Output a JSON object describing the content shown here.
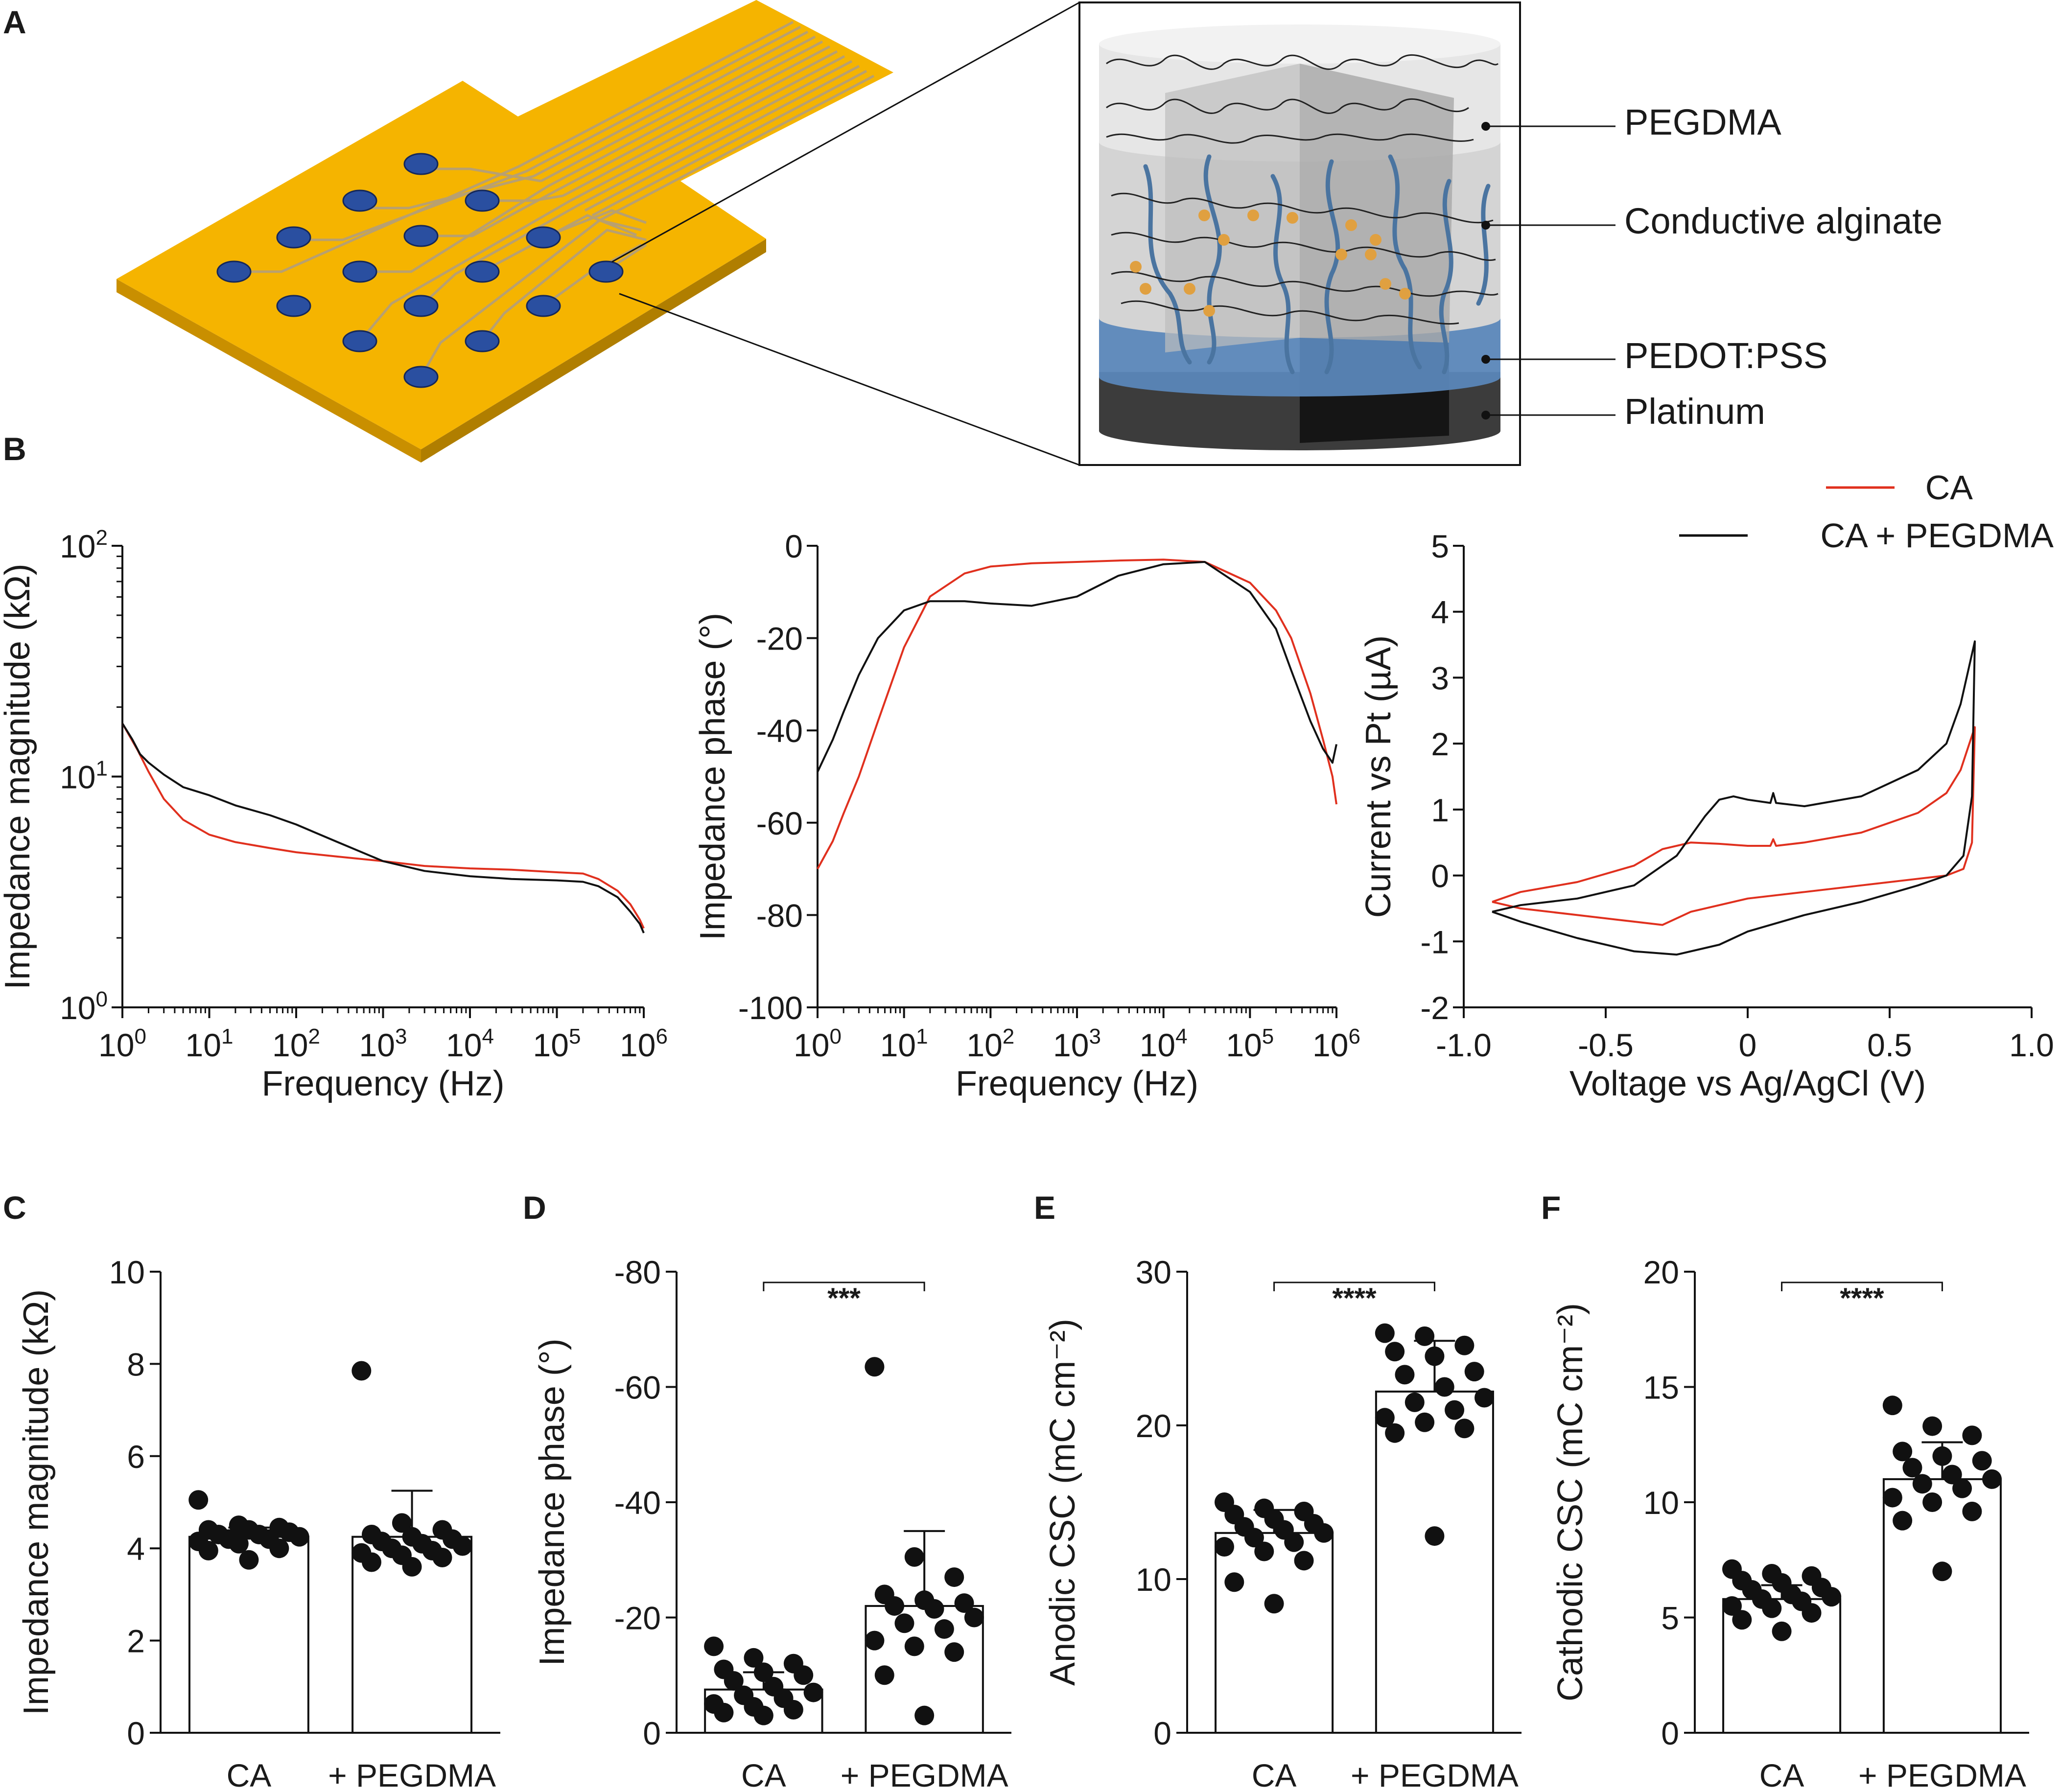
{
  "panel_letters": [
    "A",
    "B",
    "C",
    "D",
    "E",
    "F"
  ],
  "schematic": {
    "layers": [
      "PEGDMA",
      "Conductive alginate",
      "PEDOT:PSS",
      "Platinum"
    ]
  },
  "legend": {
    "entries": [
      "CA",
      "CA + PEGDMA"
    ]
  },
  "colors": {
    "ca": "#e0301e",
    "ca_pegdma": "#111111",
    "pcb": "#f5b400",
    "electrode": "#2a4fa0",
    "trace": "#b8a070"
  },
  "chart_data": [
    {
      "id": "B1",
      "type": "line",
      "xscale": "log",
      "yscale": "log",
      "xlabel": "Frequency (Hz)",
      "ylabel": "Impedance magnitude (kΩ)",
      "xlim": [
        1,
        1000000
      ],
      "ylim": [
        1,
        100
      ],
      "xticks": [
        {
          "base": "10",
          "exp": "0"
        },
        {
          "base": "10",
          "exp": "1"
        },
        {
          "base": "10",
          "exp": "2"
        },
        {
          "base": "10",
          "exp": "3"
        },
        {
          "base": "10",
          "exp": "4"
        },
        {
          "base": "10",
          "exp": "5"
        },
        {
          "base": "10",
          "exp": "6"
        }
      ],
      "yticks": [
        {
          "base": "10",
          "exp": "0"
        },
        {
          "base": "10",
          "exp": "1"
        },
        {
          "base": "10",
          "exp": "2"
        }
      ],
      "series": [
        {
          "name": "CA",
          "x": [
            1,
            1.5,
            2,
            3,
            5,
            10,
            20,
            50,
            100,
            300,
            1000,
            3000,
            10000,
            30000,
            100000,
            200000,
            300000,
            500000,
            700000,
            900000,
            1000000
          ],
          "y": [
            17,
            13,
            10.5,
            8,
            6.5,
            5.6,
            5.2,
            4.9,
            4.7,
            4.5,
            4.3,
            4.1,
            4.0,
            3.95,
            3.85,
            3.8,
            3.6,
            3.2,
            2.8,
            2.4,
            2.2
          ]
        },
        {
          "name": "CA + PEGDMA",
          "x": [
            1,
            1.3,
            1.6,
            2,
            3,
            5,
            10,
            20,
            50,
            100,
            300,
            1000,
            3000,
            10000,
            30000,
            100000,
            200000,
            300000,
            500000,
            700000,
            900000,
            1000000
          ],
          "y": [
            17,
            14.5,
            12.5,
            11.5,
            10.2,
            9.0,
            8.3,
            7.5,
            6.8,
            6.2,
            5.2,
            4.3,
            3.9,
            3.7,
            3.6,
            3.55,
            3.5,
            3.35,
            3.0,
            2.6,
            2.3,
            2.1
          ]
        }
      ]
    },
    {
      "id": "B2",
      "type": "line",
      "xscale": "log",
      "xlabel": "Frequency (Hz)",
      "ylabel": "Impedance phase (°)",
      "xlim": [
        1,
        1000000
      ],
      "ylim": [
        -100,
        0
      ],
      "xticks": [
        {
          "base": "10",
          "exp": "0"
        },
        {
          "base": "10",
          "exp": "1"
        },
        {
          "base": "10",
          "exp": "2"
        },
        {
          "base": "10",
          "exp": "3"
        },
        {
          "base": "10",
          "exp": "4"
        },
        {
          "base": "10",
          "exp": "5"
        },
        {
          "base": "10",
          "exp": "6"
        }
      ],
      "yticks": [
        "0",
        "-20",
        "-40",
        "-60",
        "-80",
        "-100"
      ],
      "series": [
        {
          "name": "CA",
          "x": [
            1,
            1.5,
            2,
            3,
            5,
            10,
            20,
            50,
            100,
            300,
            1000,
            3000,
            10000,
            30000,
            100000,
            200000,
            300000,
            500000,
            700000,
            900000,
            1000000
          ],
          "y": [
            -70,
            -64,
            -58,
            -50,
            -38,
            -22,
            -11,
            -6,
            -4.5,
            -3.8,
            -3.5,
            -3.2,
            -3,
            -3.5,
            -8,
            -14,
            -20,
            -32,
            -42,
            -50,
            -56
          ]
        },
        {
          "name": "CA + PEGDMA",
          "x": [
            1,
            1.5,
            2,
            3,
            5,
            10,
            20,
            50,
            100,
            300,
            1000,
            3000,
            10000,
            30000,
            100000,
            200000,
            300000,
            500000,
            700000,
            900000,
            1000000
          ],
          "y": [
            -49,
            -42,
            -36,
            -28,
            -20,
            -14,
            -12,
            -12,
            -12.5,
            -13,
            -11,
            -6.5,
            -4,
            -3.5,
            -10,
            -18,
            -27,
            -38,
            -44,
            -47,
            -43
          ]
        }
      ]
    },
    {
      "id": "B3",
      "type": "line",
      "xlabel": "Voltage vs Ag/AgCl (V)",
      "ylabel": "Current vs Pt (µA)",
      "xlim": [
        -1.0,
        1.0
      ],
      "ylim": [
        -2,
        5
      ],
      "xticks": [
        "-1.0",
        "-0.5",
        "0",
        "0.5",
        "1.0"
      ],
      "yticks": [
        "-2",
        "-1",
        "0",
        "1",
        "2",
        "3",
        "4",
        "5"
      ],
      "series": [
        {
          "name": "CA",
          "x": [
            -0.9,
            -0.8,
            -0.6,
            -0.4,
            -0.3,
            -0.2,
            -0.1,
            0.0,
            0.08,
            0.09,
            0.1,
            0.2,
            0.4,
            0.6,
            0.7,
            0.75,
            0.8,
            0.79,
            0.76,
            0.7,
            0.6,
            0.4,
            0.2,
            0.0,
            -0.2,
            -0.3,
            -0.4,
            -0.6,
            -0.8,
            -0.9
          ],
          "y": [
            -0.4,
            -0.25,
            -0.1,
            0.15,
            0.4,
            0.5,
            0.48,
            0.45,
            0.45,
            0.55,
            0.45,
            0.5,
            0.65,
            0.95,
            1.25,
            1.6,
            2.25,
            0.5,
            0.1,
            0.0,
            -0.05,
            -0.15,
            -0.25,
            -0.35,
            -0.55,
            -0.75,
            -0.7,
            -0.6,
            -0.5,
            -0.4
          ]
        },
        {
          "name": "CA + PEGDMA",
          "x": [
            -0.9,
            -0.8,
            -0.6,
            -0.4,
            -0.25,
            -0.15,
            -0.1,
            -0.05,
            0.0,
            0.08,
            0.09,
            0.1,
            0.2,
            0.4,
            0.6,
            0.7,
            0.75,
            0.8,
            0.79,
            0.76,
            0.7,
            0.6,
            0.4,
            0.2,
            0.0,
            -0.1,
            -0.25,
            -0.4,
            -0.6,
            -0.8,
            -0.9
          ],
          "y": [
            -0.55,
            -0.45,
            -0.35,
            -0.15,
            0.3,
            0.9,
            1.15,
            1.2,
            1.15,
            1.1,
            1.25,
            1.1,
            1.05,
            1.2,
            1.6,
            2.0,
            2.6,
            3.55,
            1.2,
            0.3,
            0.0,
            -0.15,
            -0.4,
            -0.6,
            -0.85,
            -1.05,
            -1.2,
            -1.15,
            -0.95,
            -0.7,
            -0.55
          ]
        }
      ]
    },
    {
      "id": "C",
      "type": "bar",
      "categories": [
        "CA",
        "+ PEGDMA"
      ],
      "ylabel": "Impedance magnitude (kΩ)",
      "ylim": [
        0,
        10
      ],
      "yticks": [
        "0",
        "2",
        "4",
        "6",
        "8",
        "10"
      ],
      "values": [
        4.25,
        4.25
      ],
      "sd_top": [
        4.45,
        5.25
      ],
      "points": [
        [
          5.05,
          4.5,
          4.45,
          4.4,
          4.4,
          4.35,
          4.3,
          4.3,
          4.25,
          4.2,
          4.2,
          4.15,
          4.1,
          4.0,
          3.95,
          3.75
        ],
        [
          7.85,
          4.55,
          4.4,
          4.3,
          4.25,
          4.2,
          4.15,
          4.1,
          4.05,
          4.0,
          3.95,
          3.9,
          3.85,
          3.8,
          3.7,
          3.6
        ]
      ],
      "significance": ""
    },
    {
      "id": "D",
      "type": "bar",
      "categories": [
        "CA",
        "+ PEGDMA"
      ],
      "ylabel": "Impedance phase (°)",
      "ylim": [
        0,
        -80
      ],
      "yticks": [
        "0",
        "-20",
        "-40",
        "-60",
        "-80"
      ],
      "values": [
        -7.5,
        -22
      ],
      "sd_top": [
        -10.5,
        -35
      ],
      "points": [
        [
          -15,
          -13,
          -12,
          -11,
          -10.5,
          -10,
          -9,
          -8,
          -7,
          -6.5,
          -6,
          -5,
          -4.5,
          -4,
          -3.5,
          -3
        ],
        [
          -63.5,
          -30.5,
          -27,
          -24,
          -23,
          -22.5,
          -22,
          -21.5,
          -20,
          -19,
          -18,
          -16,
          -15,
          -14,
          -10,
          -3
        ]
      ],
      "significance": "***"
    },
    {
      "id": "E",
      "type": "bar",
      "categories": [
        "CA",
        "+ PEGDMA"
      ],
      "ylabel": "Anodic CSC (mC cm⁻²)",
      "ylim": [
        0,
        30
      ],
      "yticks": [
        "0",
        "10",
        "20",
        "30"
      ],
      "values": [
        13,
        22.2
      ],
      "sd_top": [
        14.5,
        25.5
      ],
      "points": [
        [
          15,
          14.6,
          14.4,
          14.2,
          13.9,
          13.6,
          13.4,
          13.2,
          13.0,
          12.7,
          12.4,
          12.1,
          11.8,
          11.2,
          9.8,
          8.4
        ],
        [
          26,
          25.8,
          25.2,
          24.8,
          24.5,
          23.5,
          23.3,
          22.5,
          21.8,
          21.5,
          21.0,
          20.5,
          20.2,
          19.8,
          19.5,
          12.8
        ]
      ],
      "significance": "****"
    },
    {
      "id": "F",
      "type": "bar",
      "categories": [
        "CA",
        "+ PEGDMA"
      ],
      "ylabel": "Cathodic CSC (mC cm⁻²)",
      "ylim": [
        0,
        20
      ],
      "yticks": [
        "0",
        "5",
        "10",
        "15",
        "20"
      ],
      "values": [
        5.8,
        11.0
      ],
      "sd_top": [
        6.4,
        12.6
      ],
      "points": [
        [
          7.1,
          6.9,
          6.8,
          6.6,
          6.5,
          6.3,
          6.2,
          6.0,
          5.9,
          5.8,
          5.7,
          5.5,
          5.4,
          5.2,
          4.9,
          4.4
        ],
        [
          14.2,
          13.3,
          12.9,
          12.2,
          12.0,
          11.8,
          11.5,
          11.2,
          11.0,
          10.8,
          10.6,
          10.2,
          10.0,
          9.6,
          9.2,
          7.0
        ]
      ],
      "significance": "****"
    }
  ]
}
